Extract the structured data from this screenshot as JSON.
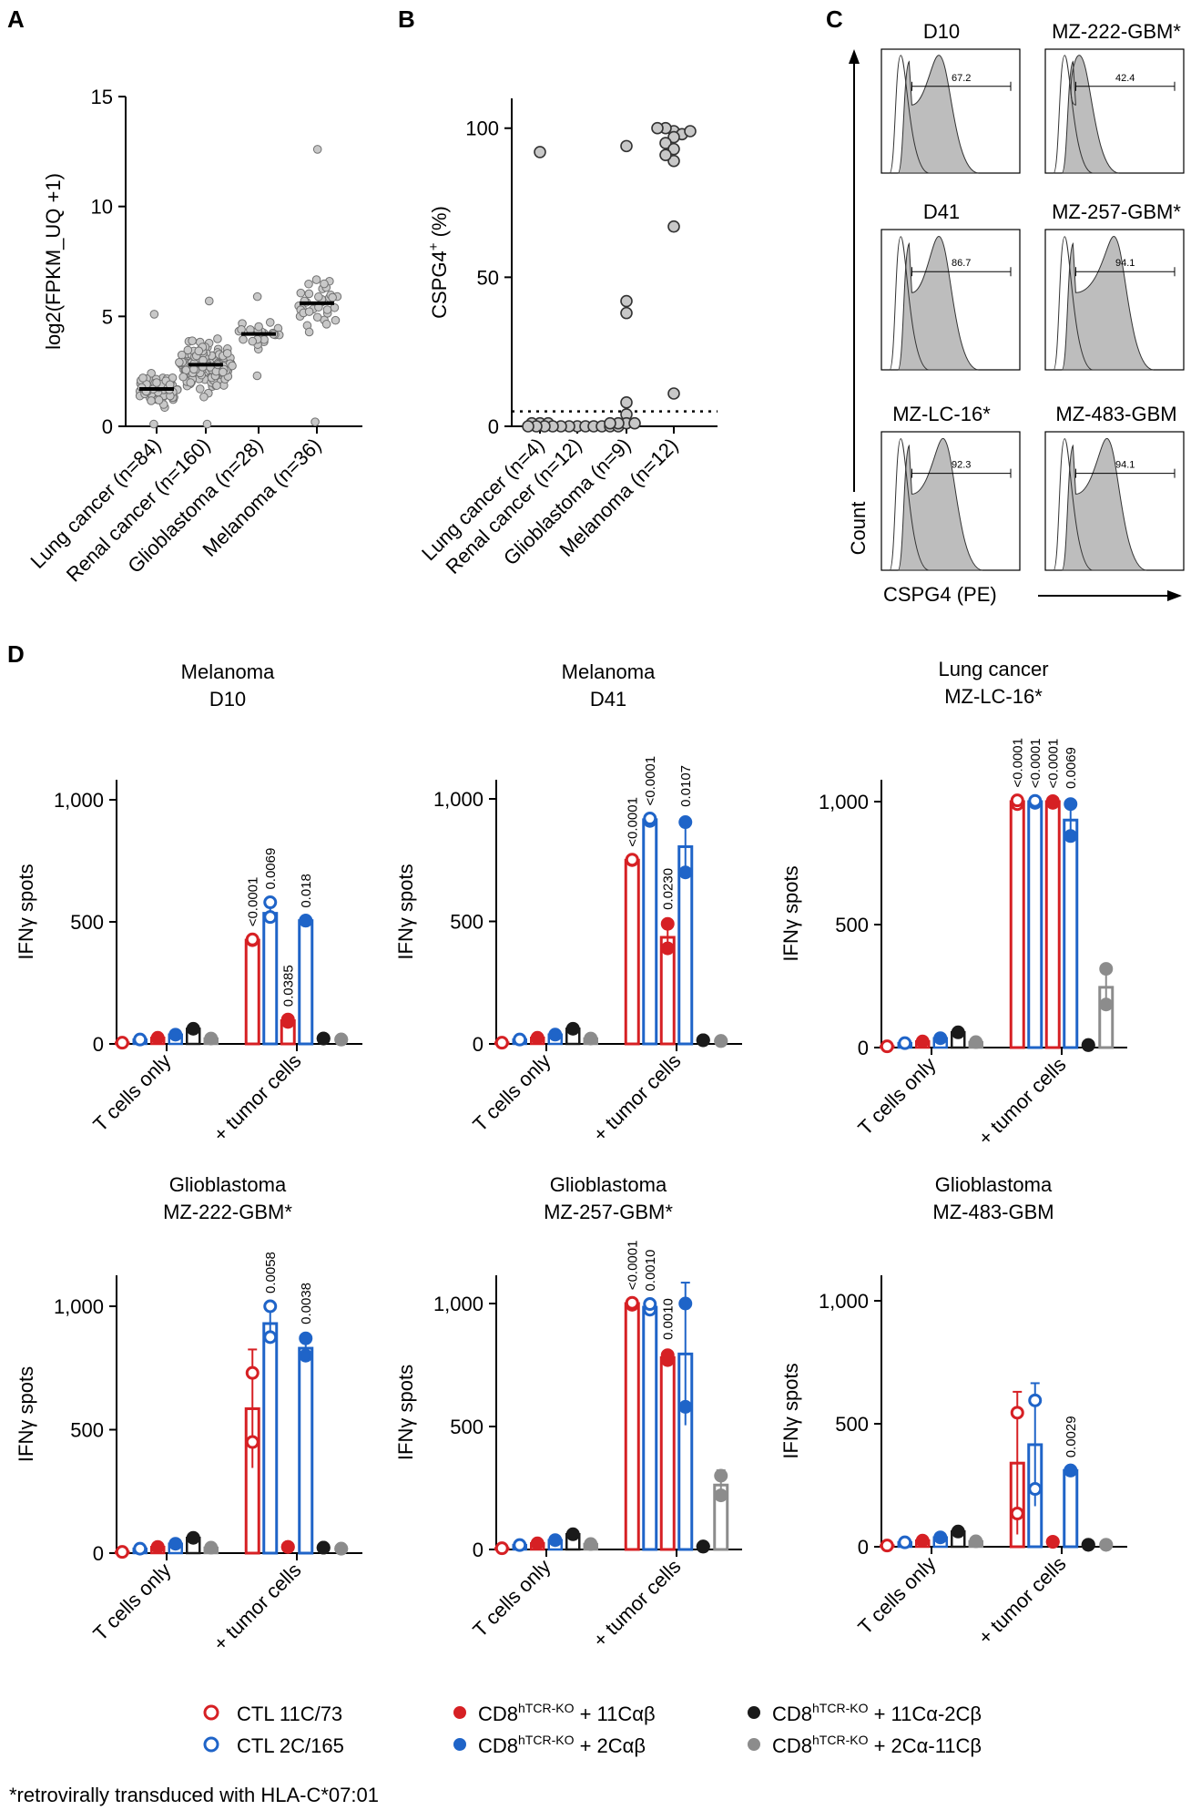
{
  "panel_letters": {
    "a": "A",
    "b": "B",
    "c": "C",
    "d": "D"
  },
  "colors": {
    "red": "#d62024",
    "blue": "#1f64c8",
    "black": "#1a1a1a",
    "gray": "#8c8c8c",
    "scatter_fill": "#c8c8c8",
    "hist_fill": "#bdbdbd"
  },
  "chart_data": [
    {
      "id": "A",
      "type": "scatter",
      "ylabel": "log2(FPKM_UQ +1)",
      "ylim": [
        0,
        15
      ],
      "yticks": [
        "0",
        "5",
        "10",
        "15"
      ],
      "categories": [
        "Lung cancer (n=84)",
        "Renal cancer (n=160)",
        "Glioblastoma (n=28)",
        "Melanoma (n=36)"
      ],
      "medians": [
        1.7,
        2.8,
        4.2,
        5.6
      ],
      "distributions": [
        {
          "n": 84,
          "min": 0.1,
          "max": 5.1,
          "center": 1.7,
          "spread": 0.85
        },
        {
          "n": 160,
          "min": 0.1,
          "max": 5.7,
          "center": 2.8,
          "spread": 1.3
        },
        {
          "n": 28,
          "min": 2.3,
          "max": 5.9,
          "center": 4.2,
          "spread": 0.8
        },
        {
          "n": 36,
          "min": 0.2,
          "max": 12.6,
          "center": 5.6,
          "spread": 1.8
        }
      ]
    },
    {
      "id": "B",
      "type": "scatter",
      "ylabel": "CSPG4",
      "ylabel_sup": "+",
      "ylabel_suffix": " (%)",
      "ylim": [
        0,
        110
      ],
      "yticks": [
        "0",
        "50",
        "100"
      ],
      "threshold": 5,
      "categories": [
        "Lung cancer (n=4)",
        "Renal cancer (n=12)",
        "Glioblastoma (n=9)",
        "Melanoma (n=12)"
      ],
      "values": [
        [
          92,
          1,
          1,
          1
        ],
        [
          0,
          0,
          0,
          0,
          0,
          0,
          0,
          0,
          0,
          0,
          0,
          0
        ],
        [
          94,
          42,
          38,
          8,
          4,
          1,
          1,
          1,
          1
        ],
        [
          99,
          100,
          98,
          97,
          100,
          95,
          99,
          93,
          89,
          91,
          67,
          11
        ]
      ]
    },
    {
      "id": "C",
      "type": "histogram",
      "xlabel": "CSPG4 (PE)",
      "ylabel": "Count",
      "plots": [
        {
          "name": "D10",
          "gate": "67.2",
          "peak": 0.42
        },
        {
          "name": "MZ-222-GBM*",
          "gate": "42.4",
          "peak": 0.25
        },
        {
          "name": "D41",
          "gate": "86.7",
          "peak": 0.42
        },
        {
          "name": "MZ-257-GBM*",
          "gate": "94.1",
          "peak": 0.5
        },
        {
          "name": "MZ-LC-16*",
          "gate": "92.3",
          "peak": 0.45
        },
        {
          "name": "MZ-483-GBM",
          "gate": "94.1",
          "peak": 0.45
        }
      ]
    },
    {
      "id": "D",
      "type": "bar",
      "ylabel": "IFNγ spots",
      "ylim": [
        0,
        1100
      ],
      "yticks": [
        "0",
        "500",
        "1,000"
      ],
      "categories": [
        "T cells only",
        "+ tumor cells"
      ],
      "series_names": [
        "CTL 11C/73",
        "CTL 2C/165",
        "CD8hTCR-KO + 11Cαβ",
        "CD8hTCR-KO + 2Cαβ",
        "CD8hTCR-KO + 11Cα-2Cβ",
        "CD8hTCR-KO + 2Cα-11Cβ"
      ],
      "panels": [
        {
          "title1": "Melanoma",
          "title2": "D10",
          "tonly": [
            5,
            18,
            25,
            38,
            62,
            22
          ],
          "tumor": [
            425,
            535,
            95,
            505,
            22,
            18
          ],
          "tumor_pts": [
            [
              425,
              428
            ],
            [
              520,
              580
            ],
            [
              90,
              100
            ],
            [
              505,
              505
            ],
            [
              22,
              22
            ],
            [
              18,
              18
            ]
          ],
          "tumor_err": [
            0,
            30,
            0,
            0,
            0,
            0
          ],
          "pvals": [
            "<0.0001",
            "0.0069",
            "0.0385",
            "0.018",
            "",
            ""
          ]
        },
        {
          "title1": "Melanoma",
          "title2": "D41",
          "tonly": [
            5,
            18,
            25,
            38,
            62,
            22
          ],
          "tumor": [
            750,
            915,
            435,
            805,
            15,
            12
          ],
          "tumor_pts": [
            [
              750,
              752
            ],
            [
              910,
              920
            ],
            [
              390,
              490
            ],
            [
              700,
              905
            ],
            [
              15,
              15
            ],
            [
              12,
              12
            ]
          ],
          "tumor_err": [
            0,
            0,
            60,
            110,
            0,
            0
          ],
          "pvals": [
            "<0.0001",
            "<0.0001",
            "0.0230",
            "0.0107",
            "",
            ""
          ]
        },
        {
          "title1": "Lung cancer",
          "title2": "MZ-LC-16*",
          "tonly": [
            5,
            18,
            25,
            38,
            62,
            22
          ],
          "tumor": [
            1000,
            1000,
            1000,
            925,
            10,
            245
          ],
          "tumor_pts": [
            [
              990,
              1005
            ],
            [
              995,
              1003
            ],
            [
              995,
              1002
            ],
            [
              860,
              990
            ],
            [
              10,
              10
            ],
            [
              175,
              320
            ]
          ],
          "tumor_err": [
            0,
            0,
            0,
            75,
            0,
            90
          ],
          "pvals": [
            "<0.0001",
            "<0.0001",
            "<0.0001",
            "0.0069",
            "",
            ""
          ]
        },
        {
          "title1": "Glioblastoma",
          "title2": "MZ-222-GBM*",
          "tonly": [
            5,
            18,
            25,
            38,
            62,
            22
          ],
          "tumor": [
            585,
            930,
            25,
            830,
            22,
            18
          ],
          "tumor_pts": [
            [
              450,
              730
            ],
            [
              875,
              1000
            ],
            [
              25,
              25
            ],
            [
              800,
              870
            ],
            [
              22,
              22
            ],
            [
              18,
              18
            ]
          ],
          "tumor_err": [
            240,
            70,
            0,
            45,
            0,
            0
          ],
          "pvals": [
            "",
            "0.0058",
            "",
            "0.0038",
            "",
            ""
          ]
        },
        {
          "title1": "Glioblastoma",
          "title2": "MZ-257-GBM*",
          "tonly": [
            5,
            18,
            25,
            38,
            62,
            22
          ],
          "tumor": [
            1000,
            985,
            780,
            795,
            12,
            262
          ],
          "tumor_pts": [
            [
              995,
              1003
            ],
            [
              975,
              998
            ],
            [
              770,
              790
            ],
            [
              580,
              1000
            ],
            [
              12,
              12
            ],
            [
              220,
              300
            ]
          ],
          "tumor_err": [
            0,
            0,
            20,
            290,
            0,
            60
          ],
          "pvals": [
            "<0.0001",
            "0.0010",
            "0.0010",
            "",
            "",
            ""
          ]
        },
        {
          "title1": "Glioblastoma",
          "title2": "MZ-483-GBM",
          "tonly": [
            5,
            18,
            25,
            38,
            62,
            22
          ],
          "tumor": [
            340,
            415,
            20,
            310,
            8,
            8
          ],
          "tumor_pts": [
            [
              135,
              545
            ],
            [
              235,
              595
            ],
            [
              20,
              20
            ],
            [
              310,
              310
            ],
            [
              8,
              8
            ],
            [
              8,
              8
            ]
          ],
          "tumor_err": [
            290,
            250,
            0,
            0,
            0,
            0
          ],
          "pvals": [
            "",
            "",
            "",
            "0.0029",
            "",
            ""
          ]
        }
      ]
    }
  ],
  "legend": {
    "item1": "CTL 11C/73",
    "item2": "CTL 2C/165",
    "item3_pre": "CD8",
    "item3_sup": "hTCR-KO",
    "item3_post": " + 11Cαβ",
    "item4_pre": "CD8",
    "item4_sup": "hTCR-KO",
    "item4_post": " + 2Cαβ",
    "item5_pre": "CD8",
    "item5_sup": "hTCR-KO",
    "item5_post": " + 11Cα-2Cβ",
    "item6_pre": "CD8",
    "item6_sup": "hTCR-KO",
    "item6_post": " + 2Cα-11Cβ"
  },
  "footnote": "*retrovirally transduced with HLA-C*07:01"
}
